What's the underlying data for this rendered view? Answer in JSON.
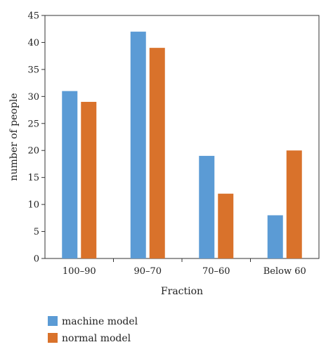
{
  "chart_data": {
    "type": "bar",
    "categories": [
      "100–90",
      "90–70",
      "70–60",
      "Below 60"
    ],
    "series": [
      {
        "name": "machine model",
        "values": [
          31,
          42,
          19,
          8
        ],
        "color": "#5b9bd5"
      },
      {
        "name": "normal model",
        "values": [
          29,
          39,
          12,
          20
        ],
        "color": "#d9722b"
      }
    ],
    "xlabel": "Fraction",
    "ylabel": "number of people",
    "ylim": [
      0,
      45
    ],
    "yticks": [
      0,
      5,
      10,
      15,
      20,
      25,
      30,
      35,
      40,
      45
    ],
    "grid": false,
    "legend_position": "bottom-left"
  }
}
